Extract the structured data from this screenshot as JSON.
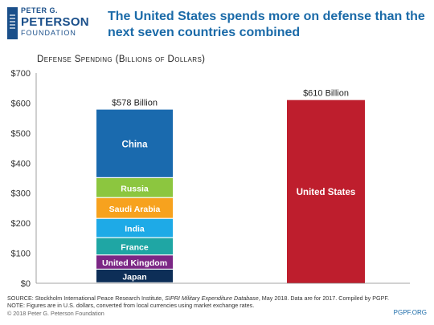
{
  "brand": {
    "line1": "PETER G.",
    "line2": "PETERSON",
    "line3": "FOUNDATION"
  },
  "headline": "The United States spends more on defense than the next seven countries combined",
  "chart_data": {
    "type": "bar",
    "title": "Defense Spending (Billions of Dollars)",
    "ylim": [
      0,
      700
    ],
    "yticks": [
      "$0",
      "$100",
      "$200",
      "$300",
      "$400",
      "$500",
      "$600",
      "$700"
    ],
    "grid": false,
    "stacked_bar": {
      "total_label": "$578 Billion",
      "segments": [
        {
          "name": "Japan",
          "value": 45.4,
          "color": "#0d2e57"
        },
        {
          "name": "United Kingdom",
          "value": 47.2,
          "color": "#7b2785"
        },
        {
          "name": "France",
          "value": 57.8,
          "color": "#1fa6a4"
        },
        {
          "name": "India",
          "value": 63.9,
          "color": "#1eaae7"
        },
        {
          "name": "Saudi Arabia",
          "value": 69.4,
          "color": "#f7a21e"
        },
        {
          "name": "Russia",
          "value": 66.3,
          "color": "#8cc63f"
        },
        {
          "name": "China",
          "value": 228.2,
          "color": "#1a6aae"
        }
      ]
    },
    "single_bar": {
      "name": "United States",
      "value": 610,
      "total_label": "$610 Billion",
      "color": "#be1e2d"
    }
  },
  "footer": {
    "source_prefix": "SOURCE: Stockholm International Peace Research Institute, ",
    "source_italic": "SIPRI Military Expenditure Database",
    "source_suffix": ", May 2018. Data are for 2017. Compiled by PGPF.",
    "note": "NOTE: Figures are in U.S. dollars, converted from local currencies using market exchange rates.",
    "copyright": "© 2018 Peter G. Peterson Foundation",
    "url": "PGPF.ORG"
  }
}
